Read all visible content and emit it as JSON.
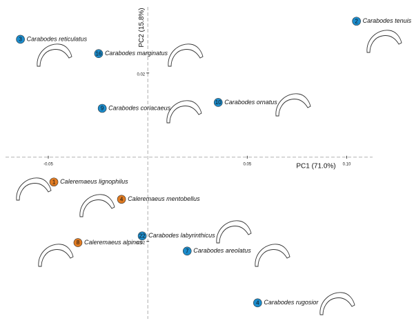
{
  "chart_data": {
    "type": "scatter",
    "x_label": "PC1 (71.0%)",
    "y_label": "PC2 (15.8%)",
    "xlim": [
      -0.0715,
      0.113
    ],
    "ylim": [
      -0.0384,
      0.0357
    ],
    "xticks": [
      -0.05,
      0.05,
      {
        "value": 0.1,
        "label": "0.10"
      }
    ],
    "yticks": [
      0.02,
      -0.02
    ],
    "points": [
      {
        "label": "3",
        "name": "Carabodes reticulatus",
        "x": -0.064,
        "y": 0.028,
        "color": "#1b8ccc"
      },
      {
        "label": "2",
        "name": "Carabodes tenuis",
        "x": 0.1049,
        "y": 0.0323,
        "color": "#1b8ccc"
      },
      {
        "label": "16",
        "name": "Carabodes marginatus",
        "x": -0.0247,
        "y": 0.0246,
        "color": "#1b8ccc"
      },
      {
        "label": "9",
        "name": "Carabodes coriacaeus",
        "x": -0.0229,
        "y": 0.0116,
        "color": "#1b8ccc"
      },
      {
        "label": "10",
        "name": "Carabodes ornatus",
        "x": 0.0354,
        "y": 0.013,
        "color": "#1b8ccc"
      },
      {
        "label": "1",
        "name": "Caleremaeus lignophilus",
        "x": -0.0472,
        "y": -0.0059,
        "color": "#e07b22"
      },
      {
        "label": "4",
        "name": "Caleremaeus mentobellus",
        "x": -0.0132,
        "y": -0.01,
        "color": "#e07b22"
      },
      {
        "label": "22",
        "name": "Carabodes labyrinthicus",
        "x": -0.0028,
        "y": -0.0187,
        "color": "#1b8ccc"
      },
      {
        "label": "8",
        "name": "Caleremaeus alpinus",
        "x": -0.0351,
        "y": -0.0203,
        "color": "#e07b22"
      },
      {
        "label": "7",
        "name": "Carabodes areolatus",
        "x": 0.0198,
        "y": -0.0223,
        "color": "#1b8ccc"
      },
      {
        "label": "4",
        "name": "Carabodes rugosior",
        "x": 0.0552,
        "y": -0.0346,
        "color": "#1b8ccc"
      }
    ]
  }
}
